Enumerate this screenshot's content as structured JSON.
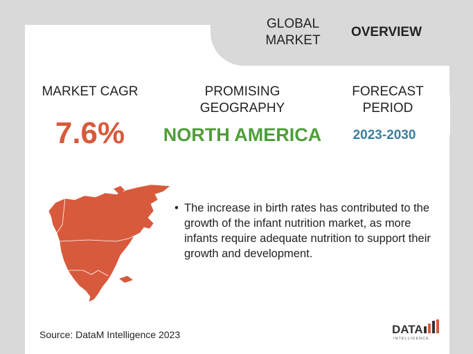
{
  "header": {
    "global_market": "GLOBAL MARKET",
    "overview": "OVERVIEW"
  },
  "stats": {
    "cagr": {
      "label": "MARKET CAGR",
      "value": "7.6%"
    },
    "geography": {
      "label": "PROMISING GEOGRAPHY",
      "value": "NORTH AMERICA"
    },
    "forecast": {
      "label": "FORECAST PERIOD",
      "value": "2023-2030"
    }
  },
  "description": "The increase in birth rates has contributed to the growth of the infant nutrition market, as more infants require adequate nutrition to support their growth and development.",
  "source": "Source: DataM Intelligence  2023",
  "logo": {
    "name": "DATAM",
    "tagline": "INTELLIGENCE"
  },
  "colors": {
    "cagr": "#d85a3c",
    "geography": "#4f9e3a",
    "forecast": "#3a7fa0",
    "map": "#d85a3c"
  }
}
